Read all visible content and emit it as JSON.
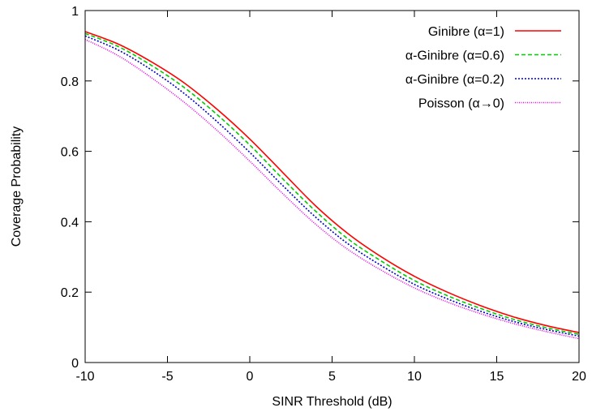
{
  "chart_data": {
    "type": "line",
    "xlabel": "SINR Threshold (dB)",
    "ylabel": "Coverage Probability",
    "xlim": [
      -10,
      20
    ],
    "ylim": [
      0,
      1
    ],
    "xticks": [
      -10,
      -5,
      0,
      5,
      10,
      15,
      20
    ],
    "yticks": [
      0,
      0.2,
      0.4,
      0.6,
      0.8,
      1
    ],
    "xtick_labels": [
      "-10",
      "-5",
      "0",
      "5",
      "10",
      "15",
      "20"
    ],
    "ytick_labels": [
      "0",
      "0.2",
      "0.4",
      "0.6",
      "0.8",
      "1"
    ],
    "grid": false,
    "legend_position": "top-right",
    "x": [
      -10,
      -8,
      -6,
      -4,
      -2,
      0,
      2,
      4,
      6,
      8,
      10,
      12,
      14,
      16,
      18,
      20
    ],
    "series": [
      {
        "name": "Ginibre (α=1)",
        "color": "#ff0000",
        "dash": "solid",
        "values": [
          0.94,
          0.905,
          0.855,
          0.795,
          0.72,
          0.635,
          0.54,
          0.445,
          0.365,
          0.3,
          0.245,
          0.2,
          0.162,
          0.13,
          0.105,
          0.085
        ]
      },
      {
        "name": "α-Ginibre (α=0.6)",
        "color": "#00cc00",
        "dash": "dashed",
        "values": [
          0.935,
          0.898,
          0.845,
          0.782,
          0.705,
          0.618,
          0.522,
          0.43,
          0.35,
          0.288,
          0.233,
          0.19,
          0.154,
          0.123,
          0.099,
          0.08
        ]
      },
      {
        "name": "α-Ginibre (α=0.2)",
        "color": "#0000cc",
        "dash": "dotted",
        "values": [
          0.928,
          0.888,
          0.832,
          0.765,
          0.685,
          0.597,
          0.503,
          0.413,
          0.336,
          0.275,
          0.222,
          0.181,
          0.146,
          0.117,
          0.094,
          0.075
        ]
      },
      {
        "name": "Poisson (α→0)",
        "color": "#ee00ee",
        "dash": "densely-dotted",
        "values": [
          0.918,
          0.872,
          0.81,
          0.74,
          0.66,
          0.572,
          0.48,
          0.393,
          0.32,
          0.262,
          0.212,
          0.172,
          0.139,
          0.111,
          0.088,
          0.068
        ]
      }
    ]
  }
}
